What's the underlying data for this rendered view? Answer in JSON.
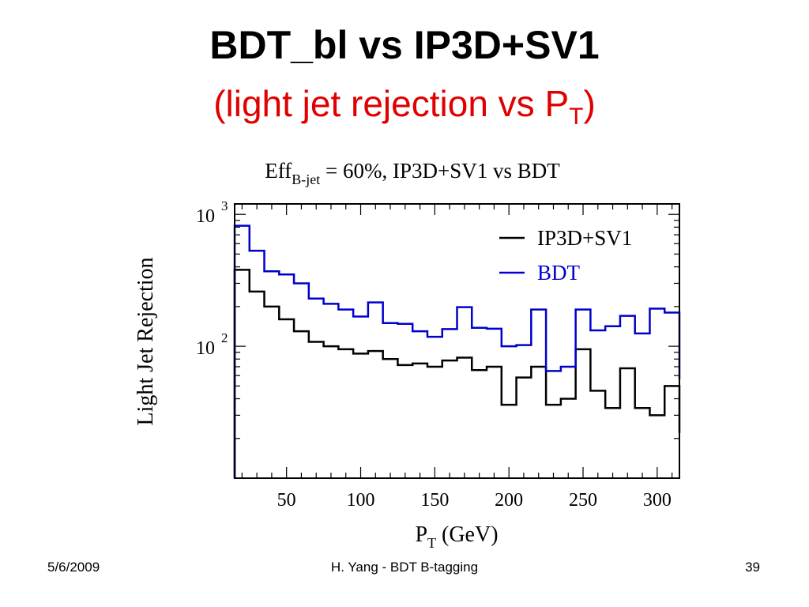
{
  "slide": {
    "title": "BDT_bl vs IP3D+SV1",
    "subtitle_main": "(light jet rejection vs P",
    "subtitle_sub": "T",
    "subtitle_end": ")"
  },
  "footer": {
    "date": "5/6/2009",
    "center": "H. Yang - BDT B-tagging",
    "page": "39"
  },
  "colors": {
    "ip3d_sv1": "#000000",
    "bdt": "#0000cc",
    "subtitle": "#e00000"
  },
  "chart_data": {
    "type": "line",
    "style": "step-histogram",
    "title_main": "Eff",
    "title_sub": "B-jet",
    "title_rest": " = 60%, IP3D+SV1 vs BDT",
    "xlabel_main": "P",
    "xlabel_sub": "T",
    "xlabel_rest": " (GeV)",
    "ylabel": "Light Jet Rejection",
    "xlim": [
      15,
      315
    ],
    "ylim": [
      10,
      1200
    ],
    "yscale": "log",
    "x_ticks": [
      50,
      100,
      150,
      200,
      250,
      300
    ],
    "y_ticks": [
      {
        "value": 100,
        "base": "10",
        "exp": "2"
      },
      {
        "value": 1000,
        "base": "10",
        "exp": "3"
      }
    ],
    "legend_position": "top-right",
    "bin_edges": [
      15,
      25,
      35,
      45,
      55,
      65,
      75,
      85,
      95,
      105,
      115,
      125,
      135,
      145,
      155,
      165,
      175,
      185,
      195,
      205,
      215,
      225,
      235,
      245,
      255,
      265,
      275,
      285,
      295,
      305,
      315
    ],
    "series": [
      {
        "name": "IP3D+SV1",
        "color": "#000000",
        "values": [
          380,
          260,
          200,
          160,
          130,
          108,
          100,
          95,
          88,
          92,
          80,
          72,
          74,
          70,
          78,
          82,
          66,
          70,
          36,
          58,
          70,
          36,
          40,
          95,
          46,
          34,
          68,
          34,
          30,
          50,
          22
        ]
      },
      {
        "name": "BDT",
        "color": "#0000cc",
        "values": [
          820,
          530,
          370,
          350,
          300,
          230,
          210,
          190,
          168,
          215,
          150,
          148,
          130,
          118,
          135,
          198,
          138,
          136,
          100,
          102,
          190,
          65,
          70,
          190,
          132,
          142,
          170,
          125,
          193,
          180,
          56
        ]
      }
    ]
  }
}
